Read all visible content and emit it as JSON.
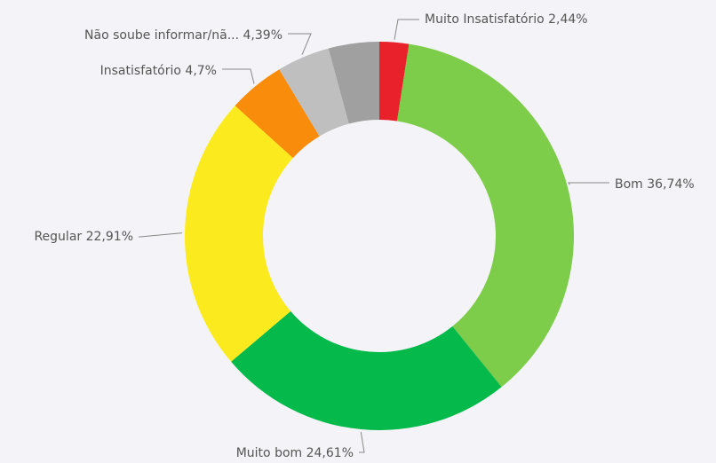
{
  "chart_data": {
    "type": "donut",
    "categories": [
      "Muito Insatisfatório",
      "Bom",
      "Muito bom",
      "Regular",
      "Insatisfatório",
      "Não soube informar/nã...",
      null
    ],
    "values": [
      2.44,
      36.74,
      24.61,
      22.91,
      4.7,
      4.39,
      4.21
    ],
    "value_labels": [
      "2,44%",
      "36,74%",
      "24,61%",
      "22,91%",
      "4,7%",
      "4,39%",
      null
    ],
    "colors": [
      "#e8212b",
      "#7dcc4a",
      "#05b94a",
      "#fbeb1e",
      "#f98c0a",
      "#bfbfbf",
      "#a0a0a0"
    ]
  }
}
